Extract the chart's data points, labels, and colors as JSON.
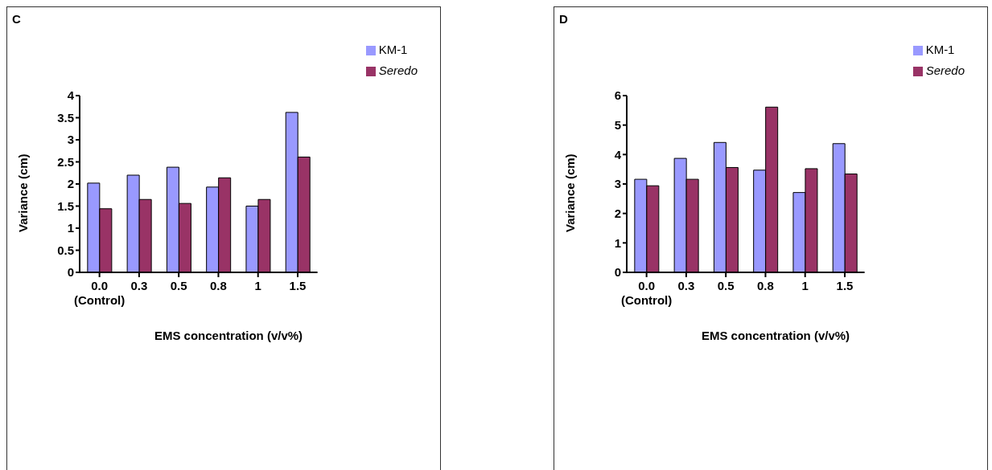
{
  "chart_data": [
    {
      "type": "bar",
      "title": "C",
      "xlabel": "EMS concentration (v/v%)",
      "ylabel": "Variance (cm)",
      "categories": [
        "0.0\n(Control)",
        "0.3",
        "0.5",
        "0.8",
        "1",
        "1.5"
      ],
      "series": [
        {
          "name": "KM-1",
          "color": "#9999ff",
          "values": [
            2.02,
            2.2,
            2.38,
            1.93,
            1.5,
            3.62
          ]
        },
        {
          "name": "Seredo",
          "color": "#993366",
          "values": [
            1.44,
            1.65,
            1.56,
            2.14,
            1.65,
            2.61
          ]
        }
      ],
      "ylim": [
        0,
        4
      ],
      "yticks": [
        0,
        0.5,
        1,
        1.5,
        2,
        2.5,
        3,
        3.5,
        4
      ],
      "grid": false,
      "legend": "top right"
    },
    {
      "type": "bar",
      "title": "D",
      "xlabel": "EMS concentration (v/v%)",
      "ylabel": "Variance (cm)",
      "categories": [
        "0.0\n(Control)",
        "0.3",
        "0.5",
        "0.8",
        "1",
        "1.5"
      ],
      "series": [
        {
          "name": "KM-1",
          "color": "#9999ff",
          "values": [
            3.16,
            3.87,
            4.41,
            3.47,
            2.71,
            4.37
          ]
        },
        {
          "name": "Seredo",
          "color": "#993366",
          "values": [
            2.94,
            3.16,
            3.56,
            5.61,
            3.52,
            3.34
          ]
        }
      ],
      "ylim": [
        0,
        6
      ],
      "yticks": [
        0,
        1,
        2,
        3,
        4,
        5,
        6
      ],
      "grid": false,
      "legend": "top right"
    }
  ]
}
